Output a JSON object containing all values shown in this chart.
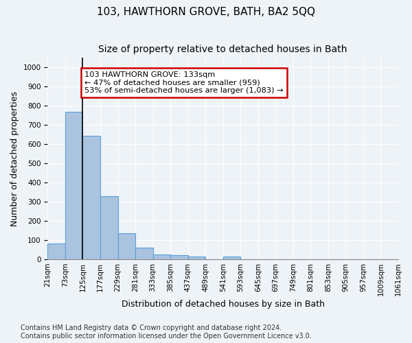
{
  "title": "103, HAWTHORN GROVE, BATH, BA2 5QQ",
  "subtitle": "Size of property relative to detached houses in Bath",
  "xlabel": "Distribution of detached houses by size in Bath",
  "ylabel": "Number of detached properties",
  "footnote": "Contains HM Land Registry data © Crown copyright and database right 2024.\nContains public sector information licensed under the Open Government Licence v3.0.",
  "bin_edges": [
    "21sqm",
    "73sqm",
    "125sqm",
    "177sqm",
    "229sqm",
    "281sqm",
    "333sqm",
    "385sqm",
    "437sqm",
    "489sqm",
    "541sqm",
    "593sqm",
    "645sqm",
    "697sqm",
    "749sqm",
    "801sqm",
    "853sqm",
    "905sqm",
    "957sqm",
    "1009sqm",
    "1061sqm"
  ],
  "bar_values": [
    83,
    770,
    645,
    330,
    135,
    60,
    25,
    20,
    13,
    0,
    13,
    0,
    0,
    0,
    0,
    0,
    0,
    0,
    0,
    0
  ],
  "bar_color": "#aac4e0",
  "bar_edge_color": "#5a9fd4",
  "property_line_x": 2,
  "annotation_text": "103 HAWTHORN GROVE: 133sqm\n← 47% of detached houses are smaller (959)\n53% of semi-detached houses are larger (1,083) →",
  "annotation_box_color": "#ffffff",
  "annotation_box_edge_color": "#cc0000",
  "ylim": [
    0,
    1050
  ],
  "yticks": [
    0,
    100,
    200,
    300,
    400,
    500,
    600,
    700,
    800,
    900,
    1000
  ],
  "background_color": "#eef3f8",
  "grid_color": "#ffffff",
  "title_fontsize": 11,
  "subtitle_fontsize": 10,
  "axis_label_fontsize": 9,
  "tick_fontsize": 7.5,
  "footnote_fontsize": 7
}
